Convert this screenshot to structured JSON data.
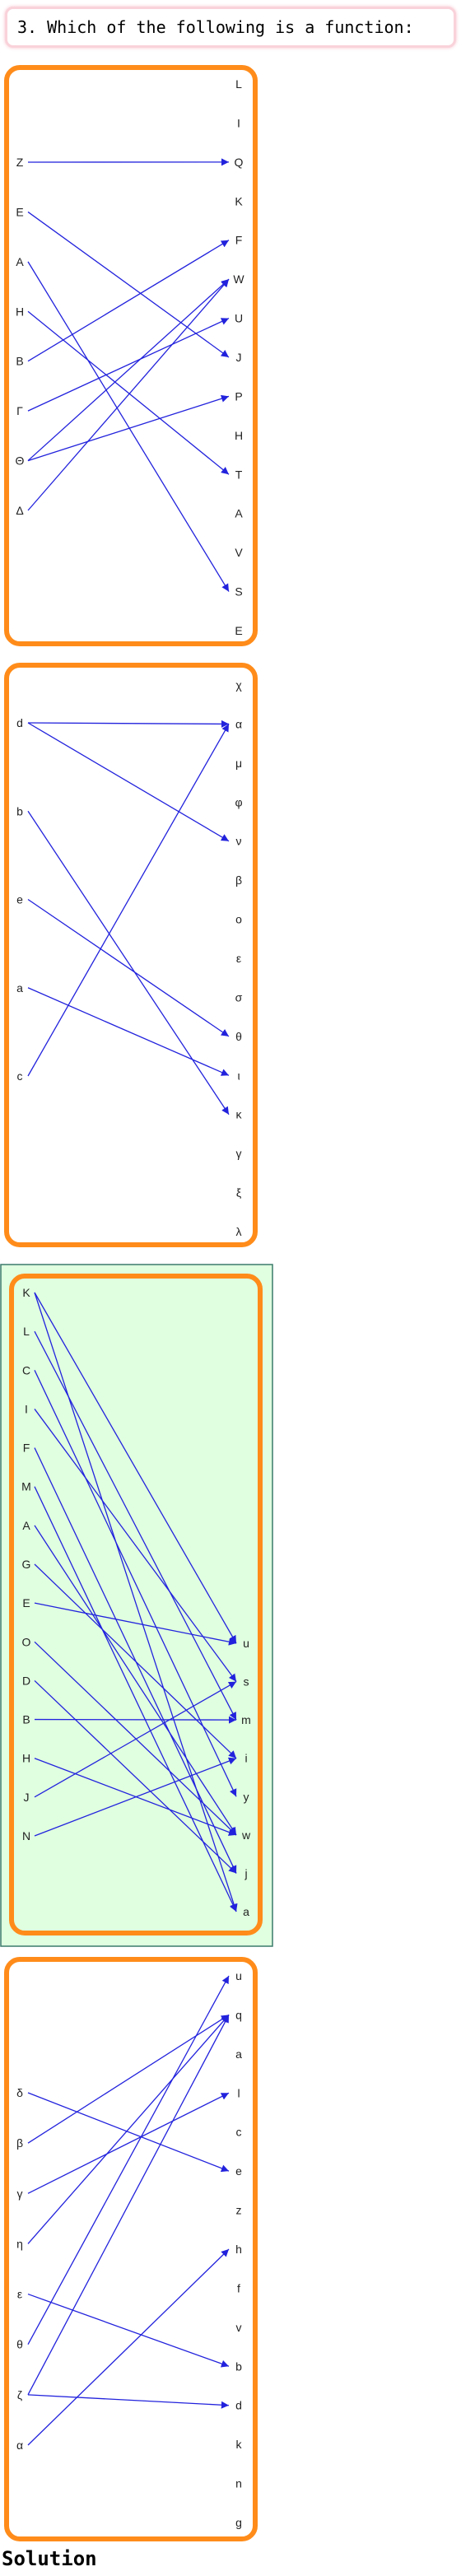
{
  "question": "3. Which of the following is a function:",
  "solution_heading": "Solution",
  "colors": {
    "frame": "#ff8c1a",
    "arrow": "#2222dd",
    "highlight_fill": "#e0ffe0",
    "highlight_border": "#3a7a6a",
    "question_border": "#f9d2da"
  },
  "diagrams": [
    {
      "id": "1",
      "highlighted": false,
      "domain": [
        "Z",
        "E",
        "A",
        "H",
        "B",
        "Γ",
        "Θ",
        "Δ"
      ],
      "codomain": [
        "L",
        "I",
        "Q",
        "K",
        "F",
        "W",
        "U",
        "J",
        "P",
        "H",
        "T",
        "A",
        "V",
        "S",
        "E"
      ],
      "arrows": [
        [
          0,
          2
        ],
        [
          1,
          7
        ],
        [
          2,
          13
        ],
        [
          3,
          10
        ],
        [
          4,
          4
        ],
        [
          5,
          6
        ],
        [
          6,
          5
        ],
        [
          6,
          8
        ],
        [
          7,
          5
        ]
      ]
    },
    {
      "id": "2",
      "highlighted": false,
      "domain": [
        "d",
        "b",
        "e",
        "a",
        "c"
      ],
      "codomain": [
        "χ",
        "α",
        "μ",
        "φ",
        "ν",
        "β",
        "ο",
        "ε",
        "σ",
        "θ",
        "ι",
        "κ",
        "γ",
        "ξ",
        "λ"
      ],
      "arrows": [
        [
          0,
          1
        ],
        [
          0,
          4
        ],
        [
          1,
          11
        ],
        [
          2,
          9
        ],
        [
          3,
          10
        ],
        [
          4,
          1
        ]
      ]
    },
    {
      "id": "3",
      "highlighted": true,
      "domain": [
        "K",
        "L",
        "C",
        "I",
        "F",
        "M",
        "A",
        "G",
        "E",
        "O",
        "D",
        "B",
        "H",
        "J",
        "N"
      ],
      "codomain": [
        "u",
        "s",
        "m",
        "i",
        "y",
        "w",
        "j",
        "a"
      ],
      "arrows": [
        [
          0,
          0
        ],
        [
          0,
          7
        ],
        [
          1,
          2
        ],
        [
          2,
          4
        ],
        [
          3,
          1
        ],
        [
          4,
          6
        ],
        [
          5,
          7
        ],
        [
          6,
          5
        ],
        [
          7,
          3
        ],
        [
          8,
          0
        ],
        [
          9,
          5
        ],
        [
          10,
          6
        ],
        [
          11,
          2
        ],
        [
          12,
          5
        ],
        [
          13,
          1
        ],
        [
          14,
          3
        ]
      ]
    },
    {
      "id": "4",
      "highlighted": false,
      "domain": [
        "δ",
        "β",
        "γ",
        "η",
        "ε",
        "θ",
        "ζ",
        "α"
      ],
      "codomain": [
        "u",
        "q",
        "a",
        "l",
        "c",
        "e",
        "z",
        "h",
        "f",
        "v",
        "b",
        "d",
        "k",
        "n",
        "g"
      ],
      "arrows": [
        [
          0,
          5
        ],
        [
          1,
          1
        ],
        [
          2,
          3
        ],
        [
          3,
          1
        ],
        [
          4,
          10
        ],
        [
          5,
          0
        ],
        [
          6,
          1
        ],
        [
          6,
          11
        ],
        [
          7,
          7
        ]
      ]
    }
  ]
}
